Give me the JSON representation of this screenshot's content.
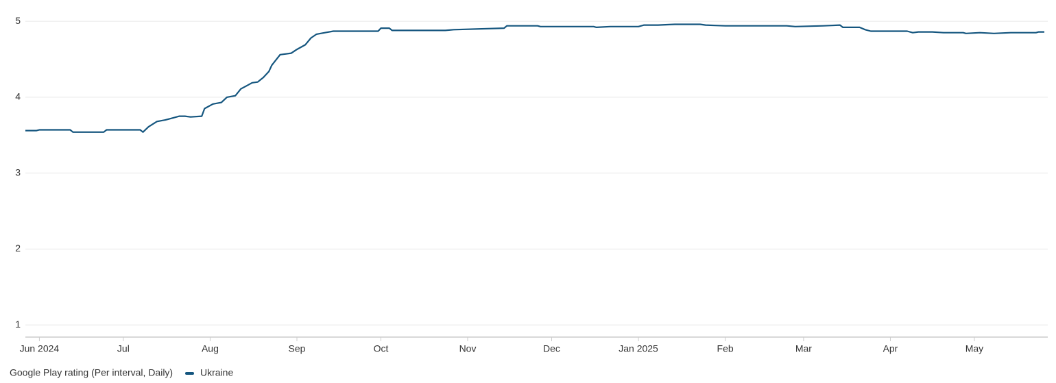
{
  "chart_data": {
    "type": "line",
    "legend_title": "Google Play rating (Per interval, Daily)",
    "x": [
      0,
      4,
      5,
      16,
      17,
      28,
      29,
      41,
      42,
      44,
      47,
      50,
      53,
      55,
      57,
      59,
      63,
      64,
      67,
      70,
      72,
      75,
      77,
      79,
      81,
      83,
      85,
      87,
      88,
      91,
      95,
      97,
      100,
      102,
      104,
      107,
      110,
      126,
      127,
      130,
      131,
      133,
      150,
      153,
      171,
      172,
      183,
      184,
      203,
      204,
      209,
      219,
      221,
      226,
      232,
      241,
      243,
      250,
      272,
      275,
      285,
      291,
      292,
      298,
      300,
      302,
      315,
      317,
      319,
      324,
      328,
      335,
      336,
      341,
      346,
      352,
      361,
      362,
      364
    ],
    "series": [
      {
        "name": "Ukraine",
        "color": "#15567f",
        "values": [
          3.56,
          3.56,
          3.57,
          3.57,
          3.54,
          3.54,
          3.57,
          3.57,
          3.54,
          3.61,
          3.68,
          3.7,
          3.73,
          3.75,
          3.75,
          3.74,
          3.75,
          3.85,
          3.91,
          3.93,
          4.0,
          4.02,
          4.11,
          4.15,
          4.19,
          4.2,
          4.26,
          4.34,
          4.42,
          4.56,
          4.58,
          4.63,
          4.69,
          4.78,
          4.83,
          4.85,
          4.87,
          4.87,
          4.91,
          4.91,
          4.88,
          4.88,
          4.88,
          4.89,
          4.91,
          4.94,
          4.94,
          4.93,
          4.93,
          4.92,
          4.93,
          4.93,
          4.95,
          4.95,
          4.96,
          4.96,
          4.95,
          4.94,
          4.94,
          4.93,
          4.94,
          4.95,
          4.92,
          4.92,
          4.89,
          4.87,
          4.87,
          4.85,
          4.86,
          4.86,
          4.85,
          4.85,
          4.84,
          4.85,
          4.84,
          4.85,
          4.85,
          4.86,
          4.86
        ]
      }
    ],
    "xlim": [
      0,
      364
    ],
    "xticks": [
      {
        "value": 5,
        "label": "Jun 2024"
      },
      {
        "value": 35,
        "label": "Jul"
      },
      {
        "value": 66,
        "label": "Aug"
      },
      {
        "value": 97,
        "label": "Sep"
      },
      {
        "value": 127,
        "label": "Oct"
      },
      {
        "value": 158,
        "label": "Nov"
      },
      {
        "value": 188,
        "label": "Dec"
      },
      {
        "value": 219,
        "label": "Jan 2025"
      },
      {
        "value": 250,
        "label": "Feb"
      },
      {
        "value": 278,
        "label": "Mar"
      },
      {
        "value": 309,
        "label": "Apr"
      },
      {
        "value": 339,
        "label": "May"
      }
    ],
    "ylim": [
      0.84,
      5.1
    ],
    "yticks": [
      1,
      2,
      3,
      4,
      5
    ],
    "grid": true
  }
}
